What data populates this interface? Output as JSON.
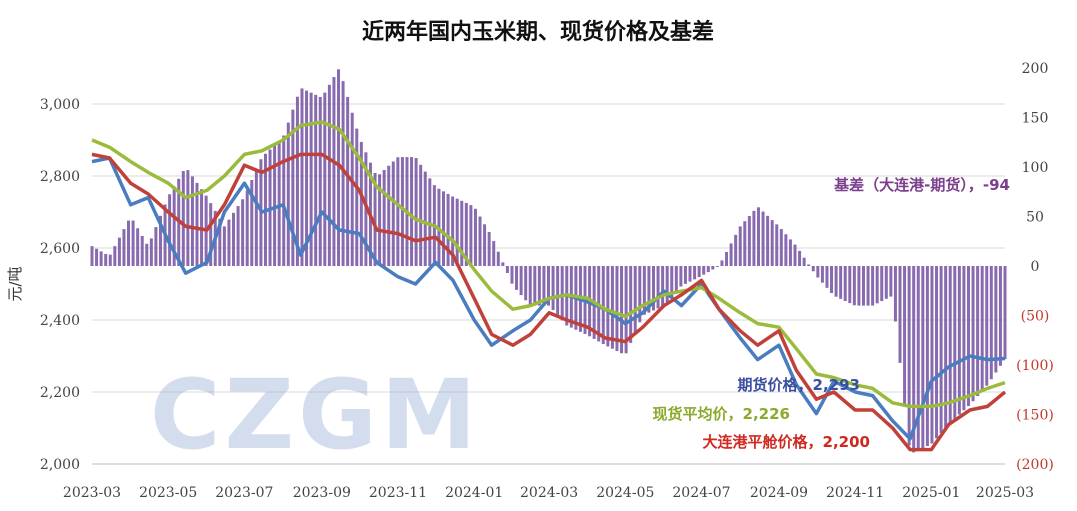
{
  "chart_data": {
    "type": "line",
    "title": "近两年国内玉米期、现货价格及基差",
    "ylabel": "元/吨",
    "watermark": "CZGM",
    "x": {
      "range": [
        "2023-03",
        "2025-03"
      ],
      "tick_labels": [
        "2023-03",
        "2023-05",
        "2023-07",
        "2023-09",
        "2023-11",
        "2024-01",
        "2024-03",
        "2024-05",
        "2024-07",
        "2024-09",
        "2024-11",
        "2025-01",
        "2025-03"
      ]
    },
    "y_left": {
      "range": [
        2000,
        3100
      ],
      "ticks": [
        2000,
        2200,
        2400,
        2600,
        2800,
        3000
      ],
      "tick_labels": [
        "2,000",
        "2,200",
        "2,400",
        "2,600",
        "2,800",
        "3,000"
      ]
    },
    "y_right": {
      "range": [
        -200,
        200
      ],
      "ticks": [
        200,
        150,
        100,
        50,
        0,
        -50,
        -100,
        -150,
        -200
      ],
      "tick_labels": [
        "200",
        "150",
        "100",
        "50",
        "0",
        "(50)",
        "(100)",
        "(150)",
        "(200)"
      ]
    },
    "grid": {
      "horizontal": true,
      "vertical": false
    },
    "series": [
      {
        "name": "期货价格",
        "axis": "left",
        "color": "#4a7cc0",
        "label": "期货价格，2,293",
        "last": 2293,
        "points": [
          [
            "2023-03-01",
            2840
          ],
          [
            "2023-03-15",
            2850
          ],
          [
            "2023-04-01",
            2720
          ],
          [
            "2023-04-15",
            2740
          ],
          [
            "2023-05-01",
            2620
          ],
          [
            "2023-05-15",
            2530
          ],
          [
            "2023-06-01",
            2560
          ],
          [
            "2023-06-15",
            2700
          ],
          [
            "2023-07-01",
            2780
          ],
          [
            "2023-07-15",
            2700
          ],
          [
            "2023-08-01",
            2720
          ],
          [
            "2023-08-15",
            2580
          ],
          [
            "2023-09-01",
            2700
          ],
          [
            "2023-09-15",
            2650
          ],
          [
            "2023-10-01",
            2640
          ],
          [
            "2023-10-15",
            2560
          ],
          [
            "2023-11-01",
            2520
          ],
          [
            "2023-11-15",
            2500
          ],
          [
            "2023-12-01",
            2560
          ],
          [
            "2023-12-15",
            2510
          ],
          [
            "2024-01-01",
            2400
          ],
          [
            "2024-01-15",
            2330
          ],
          [
            "2024-02-01",
            2370
          ],
          [
            "2024-02-15",
            2400
          ],
          [
            "2024-03-01",
            2460
          ],
          [
            "2024-03-15",
            2470
          ],
          [
            "2024-04-01",
            2450
          ],
          [
            "2024-04-15",
            2430
          ],
          [
            "2024-05-01",
            2390
          ],
          [
            "2024-05-15",
            2420
          ],
          [
            "2024-06-01",
            2480
          ],
          [
            "2024-06-15",
            2440
          ],
          [
            "2024-07-01",
            2500
          ],
          [
            "2024-07-15",
            2430
          ],
          [
            "2024-08-01",
            2350
          ],
          [
            "2024-08-15",
            2290
          ],
          [
            "2024-09-01",
            2330
          ],
          [
            "2024-09-15",
            2220
          ],
          [
            "2024-10-01",
            2140
          ],
          [
            "2024-10-15",
            2230
          ],
          [
            "2024-11-01",
            2200
          ],
          [
            "2024-11-15",
            2190
          ],
          [
            "2024-12-01",
            2120
          ],
          [
            "2024-12-15",
            2070
          ],
          [
            "2025-01-01",
            2230
          ],
          [
            "2025-01-15",
            2270
          ],
          [
            "2025-02-01",
            2300
          ],
          [
            "2025-02-15",
            2290
          ],
          [
            "2025-03-01",
            2293
          ]
        ]
      },
      {
        "name": "现货平均价",
        "axis": "left",
        "color": "#9bbb3c",
        "label": "现货平均价，2,226",
        "last": 2226,
        "points": [
          [
            "2023-03-01",
            2900
          ],
          [
            "2023-03-15",
            2880
          ],
          [
            "2023-04-01",
            2840
          ],
          [
            "2023-04-15",
            2810
          ],
          [
            "2023-05-01",
            2780
          ],
          [
            "2023-05-15",
            2740
          ],
          [
            "2023-06-01",
            2760
          ],
          [
            "2023-06-15",
            2800
          ],
          [
            "2023-07-01",
            2860
          ],
          [
            "2023-07-15",
            2870
          ],
          [
            "2023-08-01",
            2900
          ],
          [
            "2023-08-15",
            2940
          ],
          [
            "2023-09-01",
            2950
          ],
          [
            "2023-09-15",
            2930
          ],
          [
            "2023-10-01",
            2850
          ],
          [
            "2023-10-15",
            2770
          ],
          [
            "2023-11-01",
            2720
          ],
          [
            "2023-11-15",
            2680
          ],
          [
            "2023-12-01",
            2660
          ],
          [
            "2023-12-15",
            2620
          ],
          [
            "2024-01-01",
            2540
          ],
          [
            "2024-01-15",
            2480
          ],
          [
            "2024-02-01",
            2430
          ],
          [
            "2024-02-15",
            2440
          ],
          [
            "2024-03-01",
            2460
          ],
          [
            "2024-03-15",
            2470
          ],
          [
            "2024-04-01",
            2460
          ],
          [
            "2024-04-15",
            2430
          ],
          [
            "2024-05-01",
            2410
          ],
          [
            "2024-05-15",
            2440
          ],
          [
            "2024-06-01",
            2470
          ],
          [
            "2024-06-15",
            2480
          ],
          [
            "2024-07-01",
            2490
          ],
          [
            "2024-07-15",
            2460
          ],
          [
            "2024-08-01",
            2420
          ],
          [
            "2024-08-15",
            2390
          ],
          [
            "2024-09-01",
            2380
          ],
          [
            "2024-09-15",
            2320
          ],
          [
            "2024-10-01",
            2250
          ],
          [
            "2024-10-15",
            2240
          ],
          [
            "2024-11-01",
            2220
          ],
          [
            "2024-11-15",
            2210
          ],
          [
            "2024-12-01",
            2170
          ],
          [
            "2024-12-15",
            2160
          ],
          [
            "2025-01-01",
            2160
          ],
          [
            "2025-01-15",
            2170
          ],
          [
            "2025-02-01",
            2190
          ],
          [
            "2025-02-15",
            2210
          ],
          [
            "2025-03-01",
            2226
          ]
        ]
      },
      {
        "name": "大连港平舱价格",
        "axis": "left",
        "color": "#c0413a",
        "label": "大连港平舱价格，2,200",
        "last": 2200,
        "points": [
          [
            "2023-03-01",
            2860
          ],
          [
            "2023-03-15",
            2850
          ],
          [
            "2023-04-01",
            2780
          ],
          [
            "2023-04-15",
            2750
          ],
          [
            "2023-05-01",
            2700
          ],
          [
            "2023-05-15",
            2660
          ],
          [
            "2023-06-01",
            2650
          ],
          [
            "2023-06-15",
            2720
          ],
          [
            "2023-07-01",
            2830
          ],
          [
            "2023-07-15",
            2810
          ],
          [
            "2023-08-01",
            2840
          ],
          [
            "2023-08-15",
            2860
          ],
          [
            "2023-09-01",
            2860
          ],
          [
            "2023-09-15",
            2830
          ],
          [
            "2023-10-01",
            2760
          ],
          [
            "2023-10-15",
            2650
          ],
          [
            "2023-11-01",
            2640
          ],
          [
            "2023-11-15",
            2620
          ],
          [
            "2023-12-01",
            2630
          ],
          [
            "2023-12-15",
            2580
          ],
          [
            "2024-01-01",
            2460
          ],
          [
            "2024-01-15",
            2360
          ],
          [
            "2024-02-01",
            2330
          ],
          [
            "2024-02-15",
            2360
          ],
          [
            "2024-03-01",
            2420
          ],
          [
            "2024-03-15",
            2400
          ],
          [
            "2024-04-01",
            2380
          ],
          [
            "2024-04-15",
            2350
          ],
          [
            "2024-05-01",
            2340
          ],
          [
            "2024-05-15",
            2380
          ],
          [
            "2024-06-01",
            2440
          ],
          [
            "2024-06-15",
            2470
          ],
          [
            "2024-07-01",
            2510
          ],
          [
            "2024-07-15",
            2430
          ],
          [
            "2024-08-01",
            2370
          ],
          [
            "2024-08-15",
            2330
          ],
          [
            "2024-09-01",
            2370
          ],
          [
            "2024-09-15",
            2260
          ],
          [
            "2024-10-01",
            2180
          ],
          [
            "2024-10-15",
            2200
          ],
          [
            "2024-11-01",
            2150
          ],
          [
            "2024-11-15",
            2150
          ],
          [
            "2024-12-01",
            2100
          ],
          [
            "2024-12-15",
            2040
          ],
          [
            "2025-01-01",
            2040
          ],
          [
            "2025-01-15",
            2110
          ],
          [
            "2025-02-01",
            2150
          ],
          [
            "2025-02-15",
            2160
          ],
          [
            "2025-03-01",
            2200
          ]
        ]
      },
      {
        "name": "基差（大连港-期货）",
        "axis": "right",
        "type": "bar",
        "color": "#7b5aa6",
        "label": "基差（大连港-期货），-94",
        "last": -94,
        "points": [
          [
            "2023-03-01",
            20
          ],
          [
            "2023-03-15",
            10
          ],
          [
            "2023-04-01",
            50
          ],
          [
            "2023-04-15",
            20
          ],
          [
            "2023-05-01",
            70
          ],
          [
            "2023-05-15",
            100
          ],
          [
            "2023-06-01",
            70
          ],
          [
            "2023-06-15",
            40
          ],
          [
            "2023-07-01",
            70
          ],
          [
            "2023-07-15",
            110
          ],
          [
            "2023-08-01",
            130
          ],
          [
            "2023-08-15",
            180
          ],
          [
            "2023-09-01",
            170
          ],
          [
            "2023-09-15",
            200
          ],
          [
            "2023-10-01",
            130
          ],
          [
            "2023-10-15",
            90
          ],
          [
            "2023-11-01",
            110
          ],
          [
            "2023-11-15",
            110
          ],
          [
            "2023-12-01",
            80
          ],
          [
            "2023-12-15",
            70
          ],
          [
            "2024-01-01",
            60
          ],
          [
            "2024-01-15",
            30
          ],
          [
            "2024-02-01",
            -20
          ],
          [
            "2024-02-15",
            -40
          ],
          [
            "2024-03-01",
            -40
          ],
          [
            "2024-03-15",
            -60
          ],
          [
            "2024-04-01",
            -70
          ],
          [
            "2024-04-15",
            -80
          ],
          [
            "2024-05-01",
            -90
          ],
          [
            "2024-05-15",
            -50
          ],
          [
            "2024-06-01",
            -40
          ],
          [
            "2024-06-15",
            -20
          ],
          [
            "2024-07-01",
            -10
          ],
          [
            "2024-07-15",
            0
          ],
          [
            "2024-08-01",
            40
          ],
          [
            "2024-08-15",
            60
          ],
          [
            "2024-09-01",
            40
          ],
          [
            "2024-09-15",
            20
          ],
          [
            "2024-10-01",
            -10
          ],
          [
            "2024-10-15",
            -30
          ],
          [
            "2024-11-01",
            -40
          ],
          [
            "2024-11-15",
            -40
          ],
          [
            "2024-12-01",
            -30
          ],
          [
            "2024-12-15",
            -190
          ],
          [
            "2025-01-01",
            -180
          ],
          [
            "2025-01-15",
            -160
          ],
          [
            "2025-02-01",
            -140
          ],
          [
            "2025-02-15",
            -120
          ],
          [
            "2025-03-01",
            -94
          ]
        ]
      }
    ]
  }
}
